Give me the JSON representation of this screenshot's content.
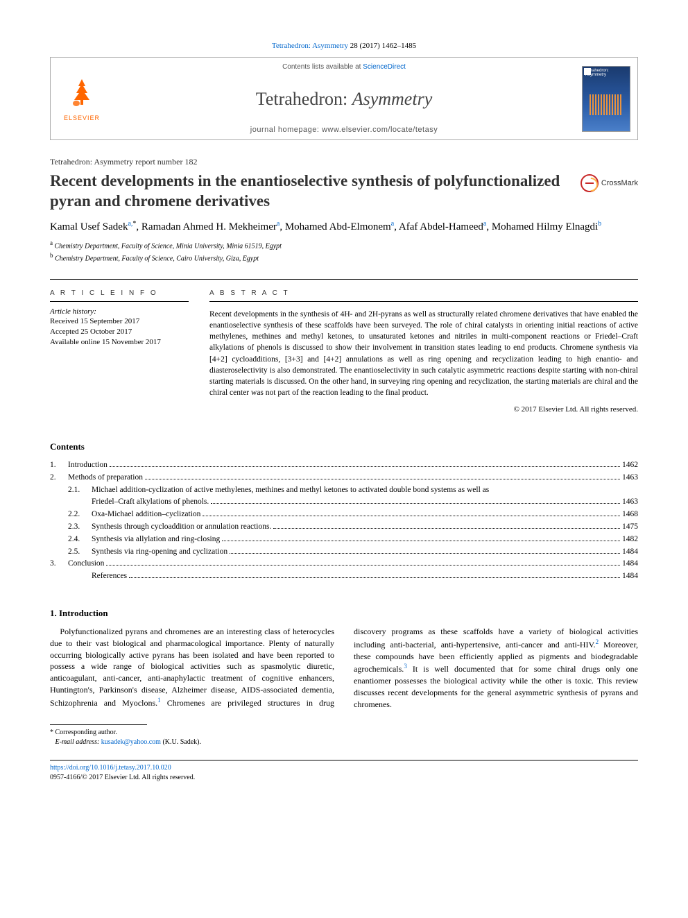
{
  "citation": {
    "journal_link": "Tetrahedron: Asymmetry",
    "vol_pages": " 28 (2017) 1462–1485"
  },
  "header": {
    "contents_available": "Contents lists available at ",
    "sciencedirect": "ScienceDirect",
    "journal_plain": "Tetrahedron: ",
    "journal_italic": "Asymmetry",
    "homepage_label": "journal homepage: ",
    "homepage_url": "www.elsevier.com/locate/tetasy",
    "publisher": "ELSEVIER",
    "cover_text": "Tetrahedron: Asymmetry"
  },
  "report_number": "Tetrahedron: Asymmetry report number 182",
  "title": "Recent developments in the enantioselective synthesis of polyfunctionalized pyran and chromene derivatives",
  "crossmark": "CrossMark",
  "authors": {
    "a1": "Kamal Usef Sadek",
    "a1_aff": "a,",
    "a1_star": "*",
    "a2": ", Ramadan Ahmed H. Mekheimer",
    "a2_aff": "a",
    "a3": ", Mohamed Abd-Elmonem",
    "a3_aff": "a",
    "a4": ", Afaf Abdel-Hameed",
    "a4_aff": "a",
    "a5": ", Mohamed Hilmy Elnagdi",
    "a5_aff": "b"
  },
  "affiliations": {
    "a": "Chemistry Department, Faculty of Science, Minia University, Minia 61519, Egypt",
    "b": "Chemistry Department, Faculty of Science, Cairo University, Giza, Egypt"
  },
  "info": {
    "heading": "A R T I C L E   I N F O",
    "history_label": "Article history:",
    "received": "Received 15 September 2017",
    "accepted": "Accepted 25 October 2017",
    "online": "Available online 15 November 2017"
  },
  "abstract": {
    "heading": "A B S T R A C T",
    "text": "Recent developments in the synthesis of 4H- and 2H-pyrans as well as structurally related chromene derivatives that have enabled the enantioselective synthesis of these scaffolds have been surveyed. The role of chiral catalysts in orienting initial reactions of active methylenes, methines and methyl ketones, to unsaturated ketones and nitriles in multi-component reactions or Friedel–Craft alkylations of phenols is discussed to show their involvement in transition states leading to end products. Chromene synthesis via [4+2] cycloadditions, [3+3] and [4+2] annulations as well as ring opening and recyclization leading to high enantio- and diasteroselectivity is also demonstrated. The enantioselectivity in such catalytic asymmetric reactions despite starting with non-chiral starting materials is discussed. On the other hand, in surveying ring opening and recyclization, the starting materials are chiral and the chiral center was not part of the reaction leading to the final product.",
    "copyright": "© 2017 Elsevier Ltd. All rights reserved."
  },
  "contents": {
    "heading": "Contents",
    "items": [
      {
        "num": "1.",
        "label": "Introduction",
        "page": "1462"
      },
      {
        "num": "2.",
        "label": "Methods of preparation",
        "page": "1463"
      },
      {
        "num": "2.1.",
        "label": "Michael addition-cyclization of active methylenes, methines and methyl ketones to activated double bond systems as well as",
        "label2": "Friedel–Craft alkylations of phenols.",
        "page": "1463",
        "sub": true,
        "wrap": true
      },
      {
        "num": "2.2.",
        "label": "Oxa-Michael addition–cyclization",
        "page": "1468",
        "sub": true
      },
      {
        "num": "2.3.",
        "label": "Synthesis through cycloaddition or annulation reactions.",
        "page": "1475",
        "sub": true
      },
      {
        "num": "2.4.",
        "label": "Synthesis via allylation and ring-closing",
        "page": "1482",
        "sub": true
      },
      {
        "num": "2.5.",
        "label": "Synthesis via ring-opening and cyclization",
        "page": "1484",
        "sub": true
      },
      {
        "num": "3.",
        "label": "Conclusion",
        "page": "1484"
      },
      {
        "num": "",
        "label": "References",
        "page": "1484",
        "sub": true
      }
    ]
  },
  "section1": {
    "heading": "1. Introduction",
    "p1": "Polyfunctionalized pyrans and chromenes are an interesting class of heterocycles due to their vast biological and pharmacological importance. Plenty of naturally occurring biologically active pyrans has been isolated and have been reported to possess a wide range of biological activities such as spasmolytic diuretic, anticoagulant, anti-cancer, anti-anaphylactic treatment of cognitive enhan",
    "p2a": "cers, Huntington's, Parkinson's disease, Alzheimer disease, AIDS-associated dementia, Schizophrenia and Myoclons.",
    "p2b": " Chromenes are privileged structures in drug discovery programs as these scaffolds have a variety of biological activities including anti-bacterial, anti-hypertensive, anti-cancer and anti-HIV.",
    "p2c": " Moreover, these compounds have been efficiently applied as pigments and biodegradable agrochemicals.",
    "p2d": " It is well documented that for some chiral drugs only one enantiomer possesses the biological activity while the other is toxic. This review discusses recent developments for the general asymmetric synthesis of pyrans and chromenes.",
    "ref1": "1",
    "ref2": "2",
    "ref3": "3"
  },
  "footnote": {
    "corr": "Corresponding author.",
    "email_label": "E-mail address: ",
    "email": "kusadek@yahoo.com",
    "email_name": " (K.U. Sadek)."
  },
  "bottom": {
    "doi": "https://doi.org/10.1016/j.tetasy.2017.10.020",
    "issn_cr": "0957-4166/© 2017 Elsevier Ltd. All rights reserved."
  },
  "colors": {
    "link": "#0066cc",
    "orange": "#ff6600",
    "crossmark_red": "#c82828"
  }
}
